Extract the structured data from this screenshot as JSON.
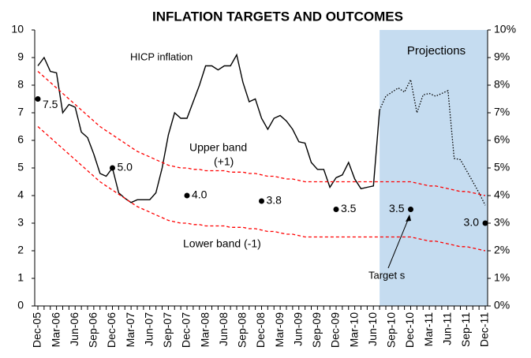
{
  "chart_data": {
    "type": "line",
    "title": "INFLATION TARGETS AND OUTCOMES",
    "categories": [
      "Dec-05",
      null,
      null,
      "Mar-06",
      null,
      null,
      "Jun-06",
      null,
      null,
      "Sep-06",
      null,
      null,
      "Dec-06",
      null,
      null,
      "Mar-07",
      null,
      null,
      "Jun-07",
      null,
      null,
      "Sep-07",
      null,
      null,
      "Dec-07",
      null,
      null,
      "Mar-08",
      null,
      null,
      "Jun-08",
      null,
      null,
      "Sep-08",
      null,
      null,
      "Dec-08",
      null,
      null,
      "Mar-09",
      null,
      null,
      "Jun-09",
      null,
      null,
      "Sep-09",
      null,
      null,
      "Dec-09",
      null,
      null,
      "Mar-10",
      null,
      null,
      "Jun-10",
      null,
      null,
      "Sep-10",
      null,
      null,
      "Dec-10",
      null,
      null,
      "Mar-11",
      null,
      null,
      "Jun-11",
      null,
      null,
      "Sep-11",
      null,
      null,
      "Dec-11"
    ],
    "series": [
      {
        "name": "HICP inflation",
        "color": "#000000",
        "dash": "solid",
        "values": [
          8.7,
          9.0,
          8.5,
          8.45,
          7.0,
          7.3,
          7.2,
          6.3,
          6.1,
          5.5,
          4.8,
          4.7,
          5.0,
          4.1,
          3.9,
          3.75,
          3.85,
          3.85,
          3.85,
          4.1,
          5.0,
          6.2,
          7.0,
          6.8,
          6.8,
          7.4,
          8.0,
          8.7,
          8.7,
          8.55,
          8.7,
          8.7,
          9.1,
          8.1,
          7.4,
          7.5,
          6.8,
          6.4,
          6.8,
          6.9,
          6.7,
          6.4,
          5.95,
          5.9,
          5.2,
          4.95,
          4.95,
          4.3,
          4.65,
          4.75,
          5.2,
          4.6,
          4.25,
          4.3,
          4.35,
          7.1,
          null,
          null,
          null,
          null,
          null,
          null,
          null,
          null,
          null,
          null,
          null,
          null,
          null,
          null,
          null,
          null,
          null
        ]
      },
      {
        "color": "#000000",
        "dash": "dotted",
        "projection": true,
        "values": [
          null,
          null,
          null,
          null,
          null,
          null,
          null,
          null,
          null,
          null,
          null,
          null,
          null,
          null,
          null,
          null,
          null,
          null,
          null,
          null,
          null,
          null,
          null,
          null,
          null,
          null,
          null,
          null,
          null,
          null,
          null,
          null,
          null,
          null,
          null,
          null,
          null,
          null,
          null,
          null,
          null,
          null,
          null,
          null,
          null,
          null,
          null,
          null,
          null,
          null,
          null,
          null,
          null,
          null,
          null,
          7.1,
          7.6,
          7.75,
          7.9,
          7.75,
          8.2,
          7.0,
          7.65,
          7.7,
          7.6,
          7.7,
          7.8,
          5.35,
          5.3,
          4.9,
          4.5,
          4.1,
          3.65
        ]
      },
      {
        "color": "#ff0000",
        "dash": "dashed",
        "values": [
          8.5,
          8.3,
          8.1,
          7.9,
          7.7,
          7.5,
          7.3,
          7.1,
          6.9,
          6.7,
          6.5,
          6.35,
          6.2,
          6.05,
          5.9,
          5.75,
          5.6,
          5.5,
          5.4,
          5.3,
          5.2,
          5.1,
          5.05,
          5.0,
          5.0,
          4.95,
          4.95,
          4.9,
          4.9,
          4.9,
          4.9,
          4.85,
          4.85,
          4.85,
          4.8,
          4.8,
          4.75,
          4.7,
          4.7,
          4.65,
          4.6,
          4.6,
          4.55,
          4.5,
          4.5,
          4.5,
          4.5,
          4.5,
          4.5,
          4.5,
          4.5,
          4.5,
          4.5,
          4.5,
          4.5,
          4.5,
          4.5,
          4.5,
          4.5,
          4.5,
          4.5,
          4.45,
          4.4,
          4.35,
          4.35,
          4.3,
          4.25,
          4.2,
          4.15,
          4.15,
          4.1,
          4.05,
          4.0
        ]
      },
      {
        "color": "#ff0000",
        "dash": "dashed",
        "values": [
          6.5,
          6.3,
          6.1,
          5.9,
          5.7,
          5.5,
          5.3,
          5.1,
          4.9,
          4.7,
          4.5,
          4.35,
          4.2,
          4.05,
          3.9,
          3.75,
          3.6,
          3.5,
          3.4,
          3.3,
          3.2,
          3.1,
          3.05,
          3.0,
          3.0,
          2.95,
          2.95,
          2.9,
          2.9,
          2.9,
          2.9,
          2.85,
          2.85,
          2.85,
          2.8,
          2.8,
          2.75,
          2.7,
          2.7,
          2.65,
          2.6,
          2.6,
          2.55,
          2.5,
          2.5,
          2.5,
          2.5,
          2.5,
          2.5,
          2.5,
          2.5,
          2.5,
          2.5,
          2.5,
          2.5,
          2.5,
          2.5,
          2.5,
          2.5,
          2.5,
          2.5,
          2.45,
          2.4,
          2.35,
          2.35,
          2.3,
          2.25,
          2.2,
          2.15,
          2.15,
          2.1,
          2.05,
          2.0
        ]
      }
    ],
    "targets": {
      "categories": [
        "Dec-05",
        "Dec-06",
        "Dec-07",
        "Dec-08",
        "Dec-09",
        "Dec-10",
        "Dec-11"
      ],
      "values": [
        7.5,
        5,
        4,
        3.8,
        3.5,
        3.5,
        3
      ],
      "value_labels": [
        "7.5",
        "5.0",
        "4.0",
        "3.8",
        "3.5",
        "3.5",
        "3.0"
      ],
      "color": "#000000"
    },
    "annotations": [
      "HICP inflation",
      "Upper band",
      "(+1)",
      "Lower band (-1)",
      "Target s",
      "Projections"
    ],
    "projection_color": "#c5dcf0",
    "ylim": [
      0,
      10
    ],
    "yticks": [
      0,
      1,
      2,
      3,
      4,
      5,
      6,
      7,
      8,
      9,
      10
    ],
    "y2lim": [
      0,
      10
    ],
    "y2ticks": [
      {
        "value": 0,
        "label": "0%"
      },
      {
        "value": 1,
        "label": "1%"
      },
      {
        "value": 2,
        "label": "2%"
      },
      {
        "value": 3,
        "label": "3%"
      },
      {
        "value": 4,
        "label": "4%"
      },
      {
        "value": 5,
        "label": "5%"
      },
      {
        "value": 6,
        "label": "6%"
      },
      {
        "value": 7,
        "label": "7%"
      },
      {
        "value": 8,
        "label": "8%"
      },
      {
        "value": 9,
        "label": "9%"
      },
      {
        "value": 10,
        "label": "10%"
      }
    ],
    "grid": false
  }
}
